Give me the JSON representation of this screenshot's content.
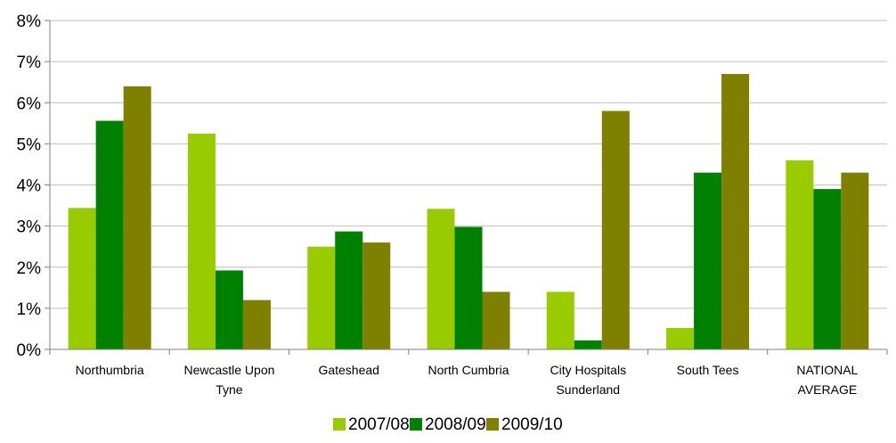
{
  "chart_data": {
    "type": "bar",
    "categories": [
      [
        "Northumbria"
      ],
      [
        "Newcastle Upon",
        "Tyne"
      ],
      [
        "Gateshead"
      ],
      [
        "North Cumbria"
      ],
      [
        "City Hospitals",
        "Sunderland"
      ],
      [
        "South Tees"
      ],
      [
        "NATIONAL",
        "AVERAGE"
      ]
    ],
    "series": [
      {
        "name": "2007/08",
        "color": "#99cc00",
        "values": [
          3.44,
          5.25,
          2.5,
          3.42,
          1.4,
          0.52,
          4.6
        ]
      },
      {
        "name": "2008/09",
        "color": "#008000",
        "values": [
          5.56,
          1.92,
          2.87,
          2.98,
          0.22,
          4.3,
          3.9
        ]
      },
      {
        "name": "2009/10",
        "color": "#808000",
        "values": [
          6.4,
          1.2,
          2.6,
          1.4,
          5.8,
          6.7,
          4.3
        ]
      }
    ],
    "ylim": [
      0,
      8
    ],
    "y_ticks": [
      "0%",
      "1%",
      "2%",
      "3%",
      "4%",
      "5%",
      "6%",
      "7%",
      "8%"
    ],
    "grid": true,
    "legend_position": "bottom",
    "title": "",
    "xlabel": "",
    "ylabel": ""
  }
}
